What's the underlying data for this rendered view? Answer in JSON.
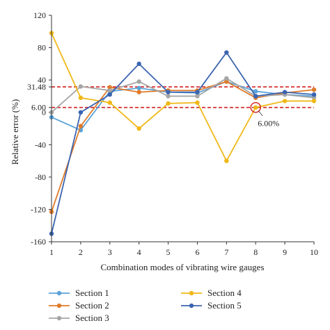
{
  "chart_data": {
    "type": "line",
    "x": [
      1,
      2,
      3,
      4,
      5,
      6,
      7,
      8,
      9,
      10
    ],
    "xlabel": "Combination modes of vibrating wire gauges",
    "ylabel": "Relative error (%)",
    "xlim": [
      1,
      10
    ],
    "ylim": [
      -160,
      120
    ],
    "yticks": [
      120,
      80,
      40,
      31.48,
      6.0,
      0,
      -40,
      -80,
      -120,
      -160
    ],
    "xticks": [
      1,
      2,
      3,
      4,
      5,
      6,
      7,
      8,
      9,
      10
    ],
    "grid": false,
    "legend": "bottom",
    "series": [
      {
        "name": "Section 1",
        "color": "#5ba3d9",
        "values": [
          -6,
          -22,
          26,
          30,
          25,
          24,
          38,
          26,
          22,
          20
        ]
      },
      {
        "name": "Section 2",
        "color": "#e07b2a",
        "values": [
          -123,
          -17,
          31,
          25,
          27,
          27,
          38,
          18,
          24,
          28
        ]
      },
      {
        "name": "Section 3",
        "color": "#a6a6a6",
        "values": [
          0,
          32,
          27,
          38,
          20,
          20,
          42,
          20,
          22,
          18
        ]
      },
      {
        "name": "Section 4",
        "color": "#f0b818",
        "values": [
          98,
          18,
          12,
          -20,
          11,
          12,
          -60,
          6,
          14,
          14
        ]
      },
      {
        "name": "Section 5",
        "color": "#3b64b0",
        "values": [
          -150,
          0,
          22,
          60,
          25,
          25,
          74,
          20,
          25,
          22
        ]
      }
    ],
    "reference_lines": [
      31.48,
      6.0
    ],
    "reference_color": "#d42020",
    "annotation": {
      "label": "6.00%",
      "x": 8,
      "y": 6.0
    }
  }
}
